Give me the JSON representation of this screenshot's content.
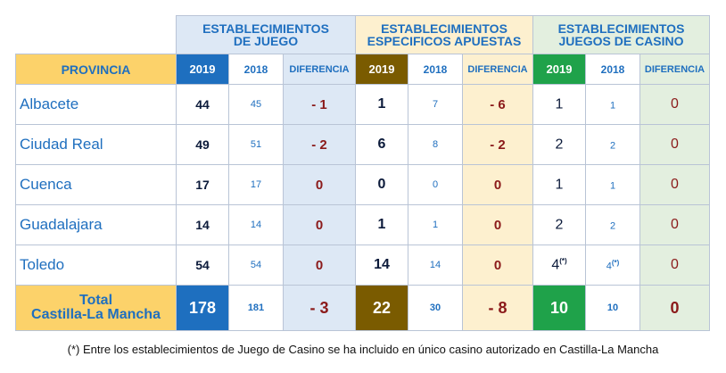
{
  "groups": [
    {
      "line1": "ESTABLECIMIENTOS",
      "line2": "DE JUEGO"
    },
    {
      "line1": "ESTABLECIMIENTOS",
      "line2": "ESPECIFICOS APUESTAS"
    },
    {
      "line1": "ESTABLECIMIENTOS",
      "line2": "JUEGOS DE CASINO"
    }
  ],
  "columns": {
    "province": "PROVINCIA",
    "y2019": "2019",
    "y2018": "2018",
    "diff": "DIFERENCIA"
  },
  "rows": [
    {
      "province": "Albacete",
      "juego": [
        "44",
        "45",
        "- 1"
      ],
      "apuestas": [
        "1",
        "7",
        "- 6"
      ],
      "casino": [
        "1",
        "",
        "1",
        "",
        "0"
      ]
    },
    {
      "province": "Ciudad Real",
      "juego": [
        "49",
        "51",
        "- 2"
      ],
      "apuestas": [
        "6",
        "8",
        "- 2"
      ],
      "casino": [
        "2",
        "",
        "2",
        "",
        "0"
      ]
    },
    {
      "province": "Cuenca",
      "juego": [
        "17",
        "17",
        "0"
      ],
      "apuestas": [
        "0",
        "0",
        "0"
      ],
      "casino": [
        "1",
        "",
        "1",
        "",
        "0"
      ]
    },
    {
      "province": "Guadalajara",
      "juego": [
        "14",
        "14",
        "0"
      ],
      "apuestas": [
        "1",
        "1",
        "0"
      ],
      "casino": [
        "2",
        "",
        "2",
        "",
        "0"
      ]
    },
    {
      "province": "Toledo",
      "juego": [
        "54",
        "54",
        "0"
      ],
      "apuestas": [
        "14",
        "14",
        "0"
      ],
      "casino": [
        "4",
        "(*)",
        "4",
        "(*)",
        "0"
      ]
    }
  ],
  "total": {
    "line1": "Total",
    "line2": "Castilla-La Mancha",
    "juego": [
      "178",
      "181",
      "- 3"
    ],
    "apuestas": [
      "22",
      "30",
      "- 8"
    ],
    "casino": [
      "10",
      "10",
      "0"
    ]
  },
  "footnote": "(*) Entre los establecimientos de Juego de Casino se ha incluido en único casino autorizado en Castilla-La Mancha",
  "colors": {
    "blue_2019": "#1e6fbf",
    "brown_2019": "#7a5b00",
    "green_2019": "#1fa24a",
    "yellow_header": "#fcd26a",
    "group1_bg": "#dde8f5",
    "group2_bg": "#fdf0cf",
    "group3_bg": "#e3efdf",
    "diff_text": "#8b1a1a"
  }
}
